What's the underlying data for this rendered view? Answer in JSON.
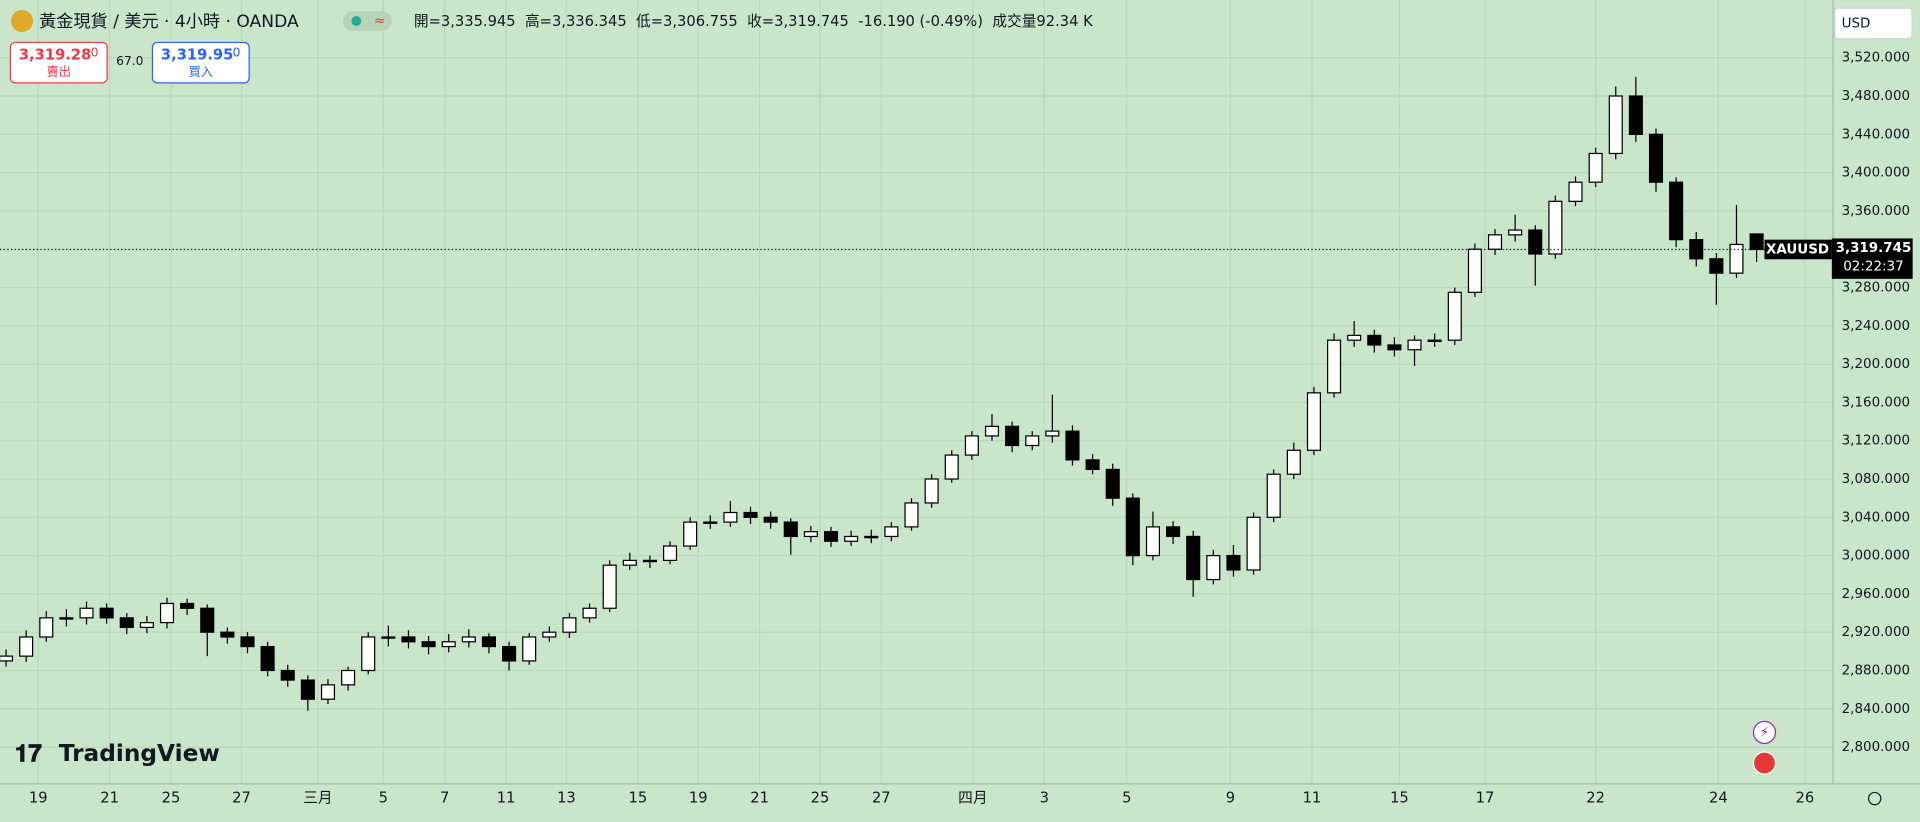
{
  "header": {
    "symbol": "黃金現貨 / 美元 · 4小時 · OANDA",
    "ohlc": "開=3,335.945  高=3,336.345  低=3,306.755  收=3,319.745  -16.190 (-0.49%)  成交量92.34 K",
    "sell_price": "3,319.28",
    "sell_digit": "0",
    "sell_label": "賣出",
    "spread": "67.0",
    "buy_price": "3,319.95",
    "buy_digit": "0",
    "buy_label": "買入",
    "currency": "USD",
    "logo": "TradingView"
  },
  "chart_data": {
    "type": "candlestick",
    "series": [
      {
        "name": "XAUUSD",
        "open": [
          2890,
          2895,
          2915,
          2935,
          2935,
          2945,
          2935,
          2925,
          2930,
          2950,
          2945,
          2920,
          2915,
          2905,
          2880,
          2870,
          2850,
          2865,
          2880,
          2915,
          2915,
          2910,
          2905,
          2910,
          2915,
          2905,
          2890,
          2915,
          2920,
          2935,
          2945,
          2990,
          2995,
          2995,
          3010,
          3035,
          3035,
          3045,
          3040,
          3035,
          3020,
          3025,
          3015,
          3020,
          3020,
          3030,
          3055,
          3080,
          3105,
          3125,
          3135,
          3115,
          3125,
          3130,
          3100,
          3090,
          3060,
          3000,
          3030,
          3020,
          2975,
          3000,
          2985,
          3040,
          3085,
          3110,
          3170,
          3225,
          3230,
          3220,
          3215,
          3225,
          3225,
          3275,
          3320,
          3335,
          3340,
          3315,
          3370,
          3390,
          3420,
          3480,
          3440,
          3390,
          3330,
          3310,
          3295,
          3335.945
        ],
        "high": [
          2902,
          2922,
          2942,
          2944,
          2952,
          2950,
          2940,
          2937,
          2956,
          2955,
          2949,
          2925,
          2920,
          2910,
          2886,
          2875,
          2871,
          2884,
          2920,
          2927,
          2922,
          2916,
          2918,
          2923,
          2919,
          2910,
          2919,
          2926,
          2940,
          2950,
          2995,
          3003,
          3000,
          3015,
          3040,
          3042,
          3057,
          3051,
          3046,
          3039,
          3031,
          3030,
          3026,
          3027,
          3035,
          3060,
          3085,
          3110,
          3130,
          3148,
          3140,
          3130,
          3168,
          3136,
          3106,
          3096,
          3065,
          3046,
          3036,
          3026,
          3006,
          3011,
          3045,
          3090,
          3118,
          3176,
          3232,
          3245,
          3236,
          3228,
          3230,
          3232,
          3280,
          3326,
          3341,
          3356,
          3345,
          3376,
          3396,
          3426,
          3490,
          3500,
          3446,
          3395,
          3338,
          3316,
          3366,
          3336.345
        ],
        "low": [
          2884,
          2889,
          2910,
          2926,
          2928,
          2929,
          2918,
          2919,
          2924,
          2938,
          2895,
          2908,
          2898,
          2874,
          2863,
          2838,
          2845,
          2859,
          2876,
          2905,
          2903,
          2897,
          2899,
          2904,
          2898,
          2880,
          2886,
          2910,
          2914,
          2930,
          2941,
          2985,
          2987,
          2991,
          3006,
          3028,
          3030,
          3033,
          3028,
          3001,
          3014,
          3009,
          3010,
          3013,
          3015,
          3026,
          3050,
          3076,
          3100,
          3120,
          3108,
          3110,
          3118,
          3094,
          3085,
          3052,
          2990,
          2995,
          3012,
          2957,
          2970,
          2978,
          2980,
          3035,
          3080,
          3105,
          3165,
          3218,
          3212,
          3208,
          3198,
          3218,
          3220,
          3270,
          3314,
          3328,
          3282,
          3310,
          3365,
          3385,
          3414,
          3432,
          3380,
          3322,
          3302,
          3262,
          3290,
          3306.755
        ],
        "close": [
          2895,
          2915,
          2935,
          2935,
          2945,
          2935,
          2925,
          2930,
          2950,
          2945,
          2920,
          2915,
          2905,
          2880,
          2870,
          2850,
          2865,
          2880,
          2915,
          2915,
          2910,
          2905,
          2910,
          2915,
          2905,
          2890,
          2915,
          2920,
          2935,
          2945,
          2990,
          2995,
          2995,
          3010,
          3035,
          3035,
          3045,
          3040,
          3035,
          3020,
          3025,
          3015,
          3020,
          3020,
          3030,
          3055,
          3080,
          3105,
          3125,
          3135,
          3115,
          3125,
          3130,
          3100,
          3090,
          3060,
          3000,
          3030,
          3020,
          2975,
          3000,
          2985,
          3040,
          3085,
          3110,
          3170,
          3225,
          3230,
          3220,
          3215,
          3225,
          3225,
          3275,
          3320,
          3335,
          3340,
          3315,
          3370,
          3390,
          3420,
          3480,
          3440,
          3390,
          3330,
          3310,
          3295,
          3325,
          3319.745
        ]
      }
    ],
    "last_price_label": "3,319.745",
    "countdown": "02:22:37",
    "xlim": [
      -0.3,
      90.8
    ],
    "xticks": [
      {
        "value": 1.6,
        "label": "19"
      },
      {
        "value": 5.15,
        "label": "21"
      },
      {
        "value": 8.2,
        "label": "25"
      },
      {
        "value": 11.7,
        "label": "27"
      },
      {
        "value": 15.5,
        "label": "三月"
      },
      {
        "value": 18.75,
        "label": "5"
      },
      {
        "value": 21.8,
        "label": "7"
      },
      {
        "value": 24.85,
        "label": "11"
      },
      {
        "value": 27.85,
        "label": "13"
      },
      {
        "value": 31.4,
        "label": "15"
      },
      {
        "value": 34.4,
        "label": "19"
      },
      {
        "value": 37.45,
        "label": "21"
      },
      {
        "value": 40.45,
        "label": "25"
      },
      {
        "value": 43.5,
        "label": "27"
      },
      {
        "value": 48.05,
        "label": "四月"
      },
      {
        "value": 51.6,
        "label": "3"
      },
      {
        "value": 55.7,
        "label": "5"
      },
      {
        "value": 60.85,
        "label": "9"
      },
      {
        "value": 64.9,
        "label": "11"
      },
      {
        "value": 69.25,
        "label": "15"
      },
      {
        "value": 73.5,
        "label": "17"
      },
      {
        "value": 79,
        "label": "22"
      },
      {
        "value": 85.1,
        "label": "24"
      },
      {
        "value": 89.4,
        "label": "26"
      }
    ],
    "ylim": [
      2761.6,
      3580.1
    ],
    "yticks": [
      {
        "value": 2800,
        "label": "2,800.000"
      },
      {
        "value": 2840,
        "label": "2,840.000"
      },
      {
        "value": 2880,
        "label": "2,880.000"
      },
      {
        "value": 2920,
        "label": "2,920.000"
      },
      {
        "value": 2960,
        "label": "2,960.000"
      },
      {
        "value": 3000,
        "label": "3,000.000"
      },
      {
        "value": 3040,
        "label": "3,040.000"
      },
      {
        "value": 3080,
        "label": "3,080.000"
      },
      {
        "value": 3120,
        "label": "3,120.000"
      },
      {
        "value": 3160,
        "label": "3,160.000"
      },
      {
        "value": 3200,
        "label": "3,200.000"
      },
      {
        "value": 3240,
        "label": "3,240.000"
      },
      {
        "value": 3280,
        "label": "3,280.000"
      },
      {
        "value": 3320,
        "label": "3,320.000"
      },
      {
        "value": 3360,
        "label": "3,360.000"
      },
      {
        "value": 3400,
        "label": "3,400.000"
      },
      {
        "value": 3440,
        "label": "3,440.000"
      },
      {
        "value": 3480,
        "label": "3,480.000"
      },
      {
        "value": 3520,
        "label": "3,520.000"
      }
    ],
    "grid": true,
    "up_color": "#ffffff",
    "down_color": "#000000"
  }
}
